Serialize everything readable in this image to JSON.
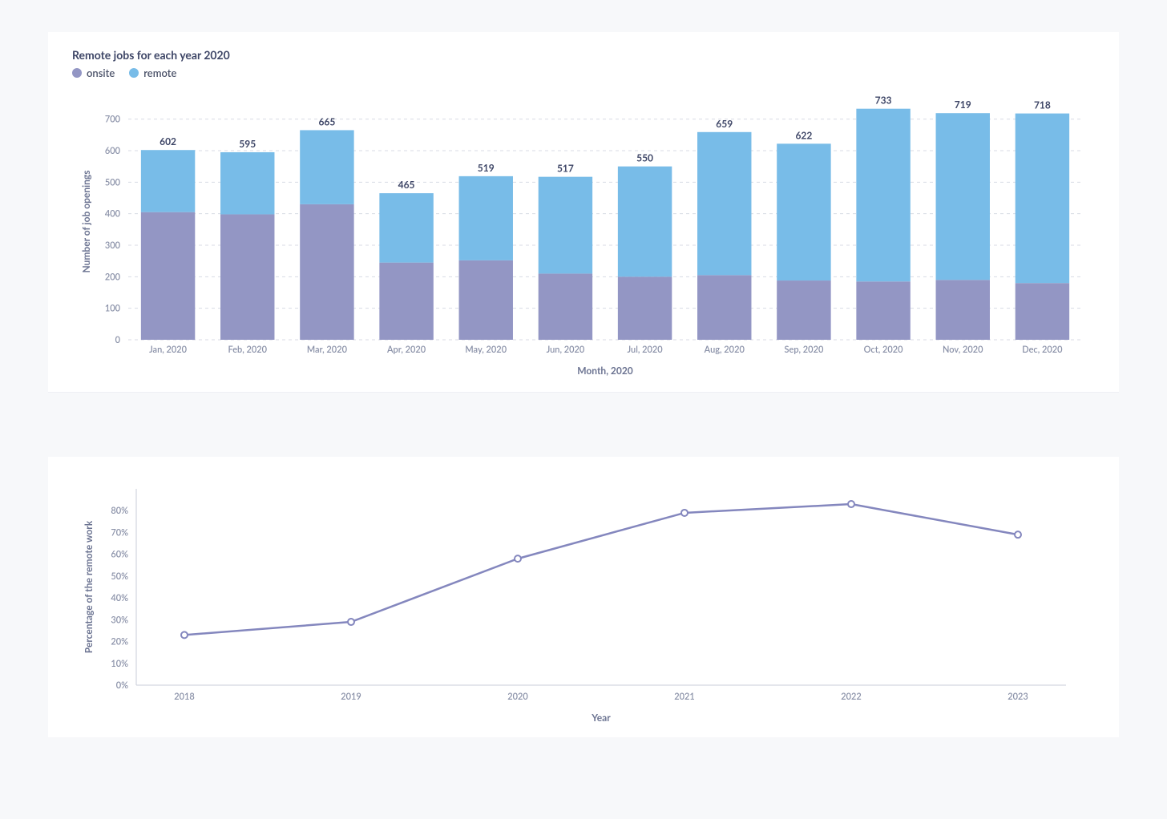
{
  "bar_chart": {
    "type": "bar-stacked",
    "title": "Remote jobs for each year 2020",
    "legend": [
      {
        "label": "onsite",
        "color": "#9396c4"
      },
      {
        "label": "remote",
        "color": "#78bce8"
      }
    ],
    "x_axis_label": "Month, 2020",
    "y_axis_label": "Number of job openings",
    "categories": [
      "Jan, 2020",
      "Feb, 2020",
      "Mar, 2020",
      "Apr, 2020",
      "May, 2020",
      "Jun, 2020",
      "Jul, 2020",
      "Aug, 2020",
      "Sep, 2020",
      "Oct, 2020",
      "Nov, 2020",
      "Dec, 2020"
    ],
    "totals": [
      602,
      595,
      665,
      465,
      519,
      517,
      550,
      659,
      622,
      733,
      719,
      718
    ],
    "onsite": [
      405,
      398,
      430,
      245,
      252,
      210,
      200,
      205,
      188,
      185,
      190,
      180
    ],
    "remote": [
      197,
      197,
      235,
      220,
      267,
      307,
      350,
      454,
      434,
      548,
      529,
      538
    ],
    "ylim": [
      0,
      750
    ],
    "yticks": [
      0,
      100,
      200,
      300,
      400,
      500,
      600,
      700
    ],
    "colors": {
      "onsite": "#9396c4",
      "remote": "#78bce8"
    },
    "background": "#ffffff",
    "grid_color": "#d8dbe4",
    "bar_gap_ratio": 0.32,
    "title_fontsize": 14,
    "label_fontsize": 12,
    "tick_fontsize": 11
  },
  "line_chart": {
    "type": "line",
    "x_axis_label": "Year",
    "y_axis_label": "Percentage of the remote work",
    "categories": [
      "2018",
      "2019",
      "2020",
      "2021",
      "2022",
      "2023"
    ],
    "values": [
      23,
      29,
      58,
      79,
      83,
      69
    ],
    "ylim": [
      0,
      90
    ],
    "yticks": [
      0,
      10,
      20,
      30,
      40,
      50,
      60,
      70,
      80
    ],
    "ytick_labels": [
      "0%",
      "10%",
      "20%",
      "30%",
      "40%",
      "50%",
      "60%",
      "70%",
      "80%"
    ],
    "line_color": "#8487be",
    "line_width": 2.5,
    "marker_radius": 4,
    "marker_fill": "#ffffff",
    "marker_stroke": "#8487be",
    "marker_stroke_width": 2,
    "background": "#ffffff",
    "axis_color": "#c8ccda",
    "label_fontsize": 12,
    "tick_fontsize": 11
  }
}
